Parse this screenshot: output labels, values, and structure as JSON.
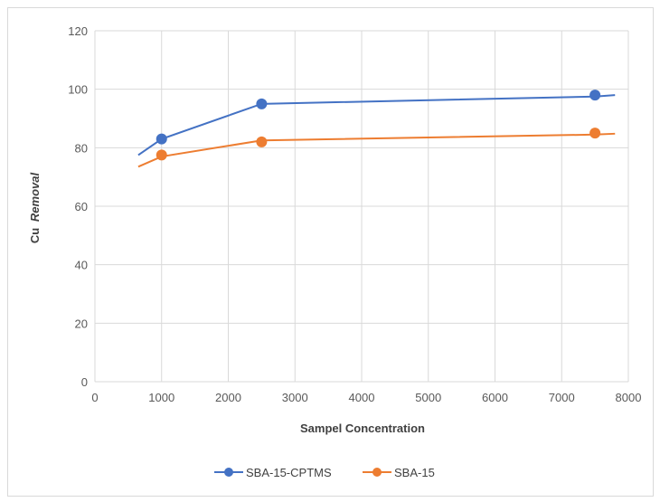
{
  "chart_data": {
    "type": "line",
    "title": "",
    "xlabel": "Sampel Concentration",
    "ylabel_prefix": "Cu",
    "ylabel_italic": "Removal",
    "xlim": [
      0,
      8000
    ],
    "ylim": [
      0,
      120
    ],
    "x_ticks": [
      "0",
      "1000",
      "2000",
      "3000",
      "4000",
      "5000",
      "6000",
      "7000",
      "8000"
    ],
    "y_ticks": [
      "0",
      "20",
      "40",
      "60",
      "80",
      "100",
      "120"
    ],
    "grid": "vertical and horizontal",
    "legend_position": "bottom",
    "series": [
      {
        "name": "SBA-15-CPTMS",
        "color": "#4472C4",
        "line": [
          [
            650,
            77.5
          ],
          [
            1000,
            83
          ],
          [
            2500,
            95
          ],
          [
            7500,
            97.5
          ],
          [
            7800,
            98
          ]
        ],
        "markers": [
          [
            1000,
            83
          ],
          [
            2500,
            95
          ],
          [
            7500,
            98
          ]
        ]
      },
      {
        "name": "SBA-15",
        "color": "#ED7D31",
        "line": [
          [
            650,
            73.5
          ],
          [
            1000,
            77
          ],
          [
            2500,
            82.5
          ],
          [
            7500,
            84.5
          ],
          [
            7800,
            84.8
          ]
        ],
        "markers": [
          [
            1000,
            77.5
          ],
          [
            2500,
            82
          ],
          [
            7500,
            85
          ]
        ]
      }
    ]
  }
}
